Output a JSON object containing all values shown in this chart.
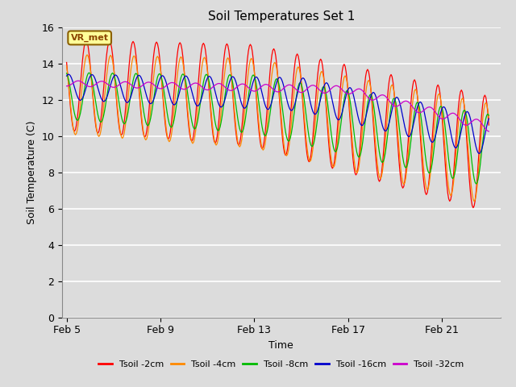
{
  "title": "Soil Temperatures Set 1",
  "xlabel": "Time",
  "ylabel": "Soil Temperature (C)",
  "ylim": [
    0,
    16
  ],
  "xtick_labels": [
    "Feb 5",
    "Feb 9",
    "Feb 13",
    "Feb 17",
    "Feb 21"
  ],
  "xtick_positions": [
    0,
    4,
    8,
    12,
    16
  ],
  "annotation_text": "VR_met",
  "bg_color": "#dcdcdc",
  "series": [
    {
      "label": "Tsoil -2cm",
      "color": "#ff0000",
      "amplitude_start": 2.5,
      "amplitude_end": 3.2,
      "phase_hours": 14.0,
      "base_start": 12.8,
      "base_end": 9.0,
      "steep_drop_day": 8,
      "steep_drop_amount": 2.5
    },
    {
      "label": "Tsoil -4cm",
      "color": "#ff8800",
      "amplitude_start": 2.2,
      "amplitude_end": 2.8,
      "phase_hours": 15.0,
      "base_start": 12.3,
      "base_end": 9.0,
      "steep_drop_day": 8,
      "steep_drop_amount": 2.2
    },
    {
      "label": "Tsoil -8cm",
      "color": "#00bb00",
      "amplitude_start": 1.3,
      "amplitude_end": 2.0,
      "phase_hours": 17.0,
      "base_start": 12.2,
      "base_end": 9.2,
      "steep_drop_day": 8,
      "steep_drop_amount": 1.8
    },
    {
      "label": "Tsoil -16cm",
      "color": "#0000cc",
      "amplitude_start": 0.7,
      "amplitude_end": 1.1,
      "phase_hours": 20.0,
      "base_start": 12.7,
      "base_end": 10.0,
      "steep_drop_day": 10,
      "steep_drop_amount": 1.5
    },
    {
      "label": "Tsoil -32cm",
      "color": "#cc00cc",
      "amplitude_start": 0.15,
      "amplitude_end": 0.25,
      "phase_hours": 30.0,
      "base_start": 12.9,
      "base_end": 10.5,
      "steep_drop_day": 12,
      "steep_drop_amount": 0.8
    }
  ],
  "grid_color": "#ffffff",
  "title_fontsize": 11,
  "label_fontsize": 9,
  "tick_fontsize": 9
}
